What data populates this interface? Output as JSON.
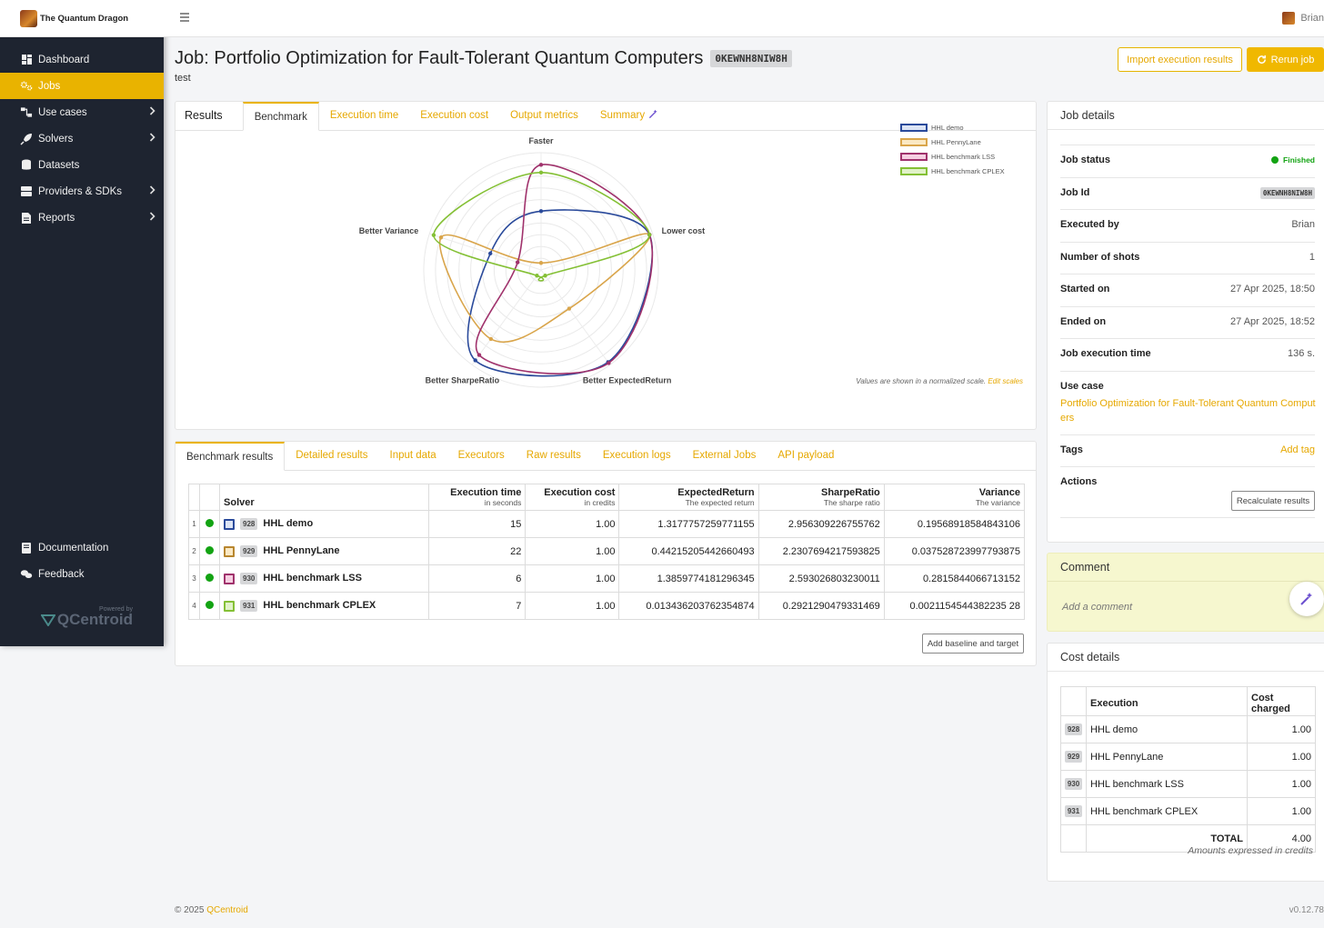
{
  "app": {
    "brand": "The Quantum Dragon",
    "user": "Brian",
    "powered_by": "Powered by",
    "powered_logo": "QCentroid"
  },
  "sidebar": {
    "items": [
      {
        "label": "Dashboard",
        "icon": "dashboard-icon",
        "chevron": false
      },
      {
        "label": "Jobs",
        "icon": "gears-icon",
        "chevron": false,
        "active": true
      },
      {
        "label": "Use cases",
        "icon": "diagram-icon",
        "chevron": true
      },
      {
        "label": "Solvers",
        "icon": "rocket-icon",
        "chevron": true
      },
      {
        "label": "Datasets",
        "icon": "database-icon",
        "chevron": false
      },
      {
        "label": "Providers & SDKs",
        "icon": "server-icon",
        "chevron": true
      },
      {
        "label": "Reports",
        "icon": "report-icon",
        "chevron": true
      }
    ],
    "bottom_items": [
      {
        "label": "Documentation",
        "icon": "book-icon"
      },
      {
        "label": "Feedback",
        "icon": "comments-icon"
      }
    ]
  },
  "header": {
    "title": "Job: Portfolio Optimization for Fault-Tolerant Quantum Computers",
    "job_code": "0KEWNH8NIW8H",
    "subtitle": "test",
    "import_button": "Import execution results",
    "rerun_button": "Rerun job"
  },
  "results": {
    "label": "Results",
    "tabs": [
      "Benchmark",
      "Execution time",
      "Execution cost",
      "Output metrics",
      "Summary"
    ],
    "note": "Values are shown in a normalized scale.",
    "edit_scales": "Edit scales"
  },
  "chart_data": {
    "type": "radar",
    "axes": [
      "Faster",
      "Lower cost",
      "Better ExpectedReturn",
      "Better SharpeRatio",
      "Better Variance"
    ],
    "range": [
      0,
      1
    ],
    "legend_position": "top-right",
    "series": [
      {
        "name": "HHL demo",
        "color": "#2a4a9b",
        "fill": "#dce4f5",
        "values": [
          0.47,
          0.97,
          0.97,
          0.95,
          0.42
        ]
      },
      {
        "name": "HHL PennyLane",
        "color": "#d9a54b",
        "fill": "#fbe9c4",
        "values": [
          0.0,
          0.97,
          0.37,
          0.71,
          0.89
        ]
      },
      {
        "name": "HHL benchmark LSS",
        "color": "#a0326c",
        "fill": "#f6cfe2",
        "values": [
          0.89,
          0.97,
          0.98,
          0.89,
          0.16
        ]
      },
      {
        "name": "HHL benchmark CPLEX",
        "color": "#84c035",
        "fill": "#e1f2c8",
        "values": [
          0.82,
          0.97,
          0.0,
          0.0,
          0.96
        ]
      }
    ]
  },
  "bottom": {
    "tabs": [
      "Benchmark results",
      "Detailed results",
      "Input data",
      "Executors",
      "Raw results",
      "Execution logs",
      "External Jobs",
      "API payload"
    ],
    "columns": [
      {
        "label": "Solver",
        "sub": ""
      },
      {
        "label": "Execution time",
        "sub": "in seconds"
      },
      {
        "label": "Execution cost",
        "sub": "in credits"
      },
      {
        "label": "ExpectedReturn",
        "sub": "The expected return"
      },
      {
        "label": "SharpeRatio",
        "sub": "The sharpe ratio"
      },
      {
        "label": "Variance",
        "sub": "The variance"
      }
    ],
    "rows": [
      {
        "index": "1",
        "id": "928",
        "name": "HHL demo",
        "color": "#2a4a9b",
        "fill": "#dce4f5",
        "time": "15",
        "cost": "1.00",
        "expected_return": "1.3177757259771155",
        "sharpe": "2.956309226755762",
        "variance": "0.19568918584843106"
      },
      {
        "index": "2",
        "id": "929",
        "name": "HHL PennyLane",
        "color": "#b8862e",
        "fill": "#fbe9c4",
        "time": "22",
        "cost": "1.00",
        "expected_return": "0.44215205442660493",
        "sharpe": "2.2307694217593825",
        "variance": "0.037528723997793875"
      },
      {
        "index": "3",
        "id": "930",
        "name": "HHL benchmark LSS",
        "color": "#a0326c",
        "fill": "#f6cfe2",
        "time": "6",
        "cost": "1.00",
        "expected_return": "1.3859774181296345",
        "sharpe": "2.593026803230011",
        "variance": "0.2815844066713152"
      },
      {
        "index": "4",
        "id": "931",
        "name": "HHL benchmark CPLEX",
        "color": "#84c035",
        "fill": "#e1f2c8",
        "time": "7",
        "cost": "1.00",
        "expected_return": "0.013436203762354874",
        "sharpe": "0.2921290479331469",
        "variance": "0.0021154544382235 28"
      }
    ],
    "add_baseline_button": "Add baseline and target"
  },
  "job_details": {
    "title": "Job details",
    "rows": [
      {
        "key": "Job status",
        "value": "Finished",
        "type": "status"
      },
      {
        "key": "Job Id",
        "value": "0KEWNH8NIW8H",
        "type": "badge"
      },
      {
        "key": "Executed by",
        "value": "Brian"
      },
      {
        "key": "Number of shots",
        "value": "1"
      },
      {
        "key": "Started on",
        "value": "27 Apr 2025, 18:50"
      },
      {
        "key": "Ended on",
        "value": "27 Apr 2025, 18:52"
      },
      {
        "key": "Job execution time",
        "value": "136 s."
      }
    ],
    "use_case_label": "Use case",
    "use_case_value": "Portfolio Optimization for Fault-Tolerant Quantum Computers",
    "tags_label": "Tags",
    "add_tag": "Add tag",
    "actions_label": "Actions",
    "recalculate_button": "Recalculate results"
  },
  "comment": {
    "title": "Comment",
    "placeholder": "Add a comment"
  },
  "cost_details": {
    "title": "Cost details",
    "col_execution": "Execution",
    "col_cost": "Cost charged",
    "rows": [
      {
        "id": "928",
        "name": "HHL demo",
        "cost": "1.00"
      },
      {
        "id": "929",
        "name": "HHL PennyLane",
        "cost": "1.00"
      },
      {
        "id": "930",
        "name": "HHL benchmark LSS",
        "cost": "1.00"
      },
      {
        "id": "931",
        "name": "HHL benchmark CPLEX",
        "cost": "1.00"
      }
    ],
    "total_label": "TOTAL",
    "total_value": "4.00",
    "note": "Amounts expressed in credits"
  },
  "footer": {
    "copyright": "© 2025",
    "link": "QCentroid",
    "version": "v0.12.78"
  }
}
